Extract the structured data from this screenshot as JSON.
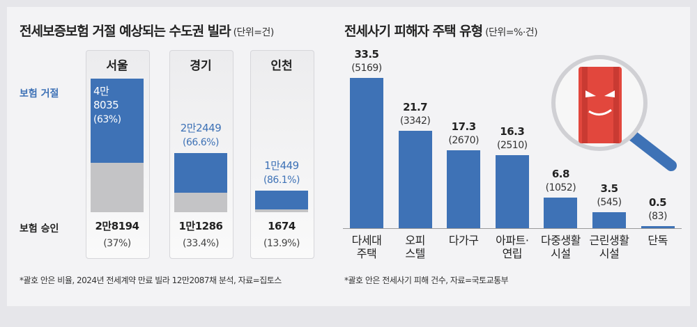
{
  "chart_data": [
    {
      "type": "stacked_bar",
      "title": "전세보증보험 거절 예상되는 수도권 빌라",
      "unit": "(단위=건)",
      "categories": [
        "서울",
        "경기",
        "인천"
      ],
      "series": [
        {
          "name": "보험 거절",
          "color": "#3e72b6",
          "values": [
            48035,
            22449,
            10449
          ],
          "value_labels": [
            "4만 8035",
            "2만2449",
            "1만449"
          ],
          "shares": [
            63,
            66.6,
            86.1
          ],
          "share_labels": [
            "(63%)",
            "(66.6%)",
            "(86.1%)"
          ]
        },
        {
          "name": "보험 승인",
          "color": "#c4c4c6",
          "values": [
            28194,
            11286,
            1674
          ],
          "value_labels": [
            "2만8194",
            "1만1286",
            "1674"
          ],
          "shares": [
            37,
            33.4,
            13.9
          ],
          "share_labels": [
            "(37%)",
            "(33.4%)",
            "(13.9%)"
          ]
        }
      ],
      "note": "*괄호 안은 비율, 2024년 전세계약 만료 빌라 12만2087채 분석, 자료=집토스"
    },
    {
      "type": "bar",
      "title": "전세사기 피해자 주택 유형",
      "unit": "(단위=%·건)",
      "color": "#3e72b6",
      "categories": [
        "다세대\n주택",
        "오피\n스텔",
        "다가구",
        "아파트·\n연립",
        "다중생활\n시설",
        "근린생활\n시설",
        "단독"
      ],
      "values": [
        33.5,
        21.7,
        17.3,
        16.3,
        6.8,
        3.5,
        0.5
      ],
      "counts": [
        5169,
        3342,
        2670,
        2510,
        1052,
        545,
        83
      ],
      "count_labels": [
        "(5169)",
        "(3342)",
        "(2670)",
        "(2510)",
        "(1052)",
        "(545)",
        "(83)"
      ],
      "note": "*괄호 안은 전세사기 피해 건수, 자료=국토교통부"
    }
  ]
}
